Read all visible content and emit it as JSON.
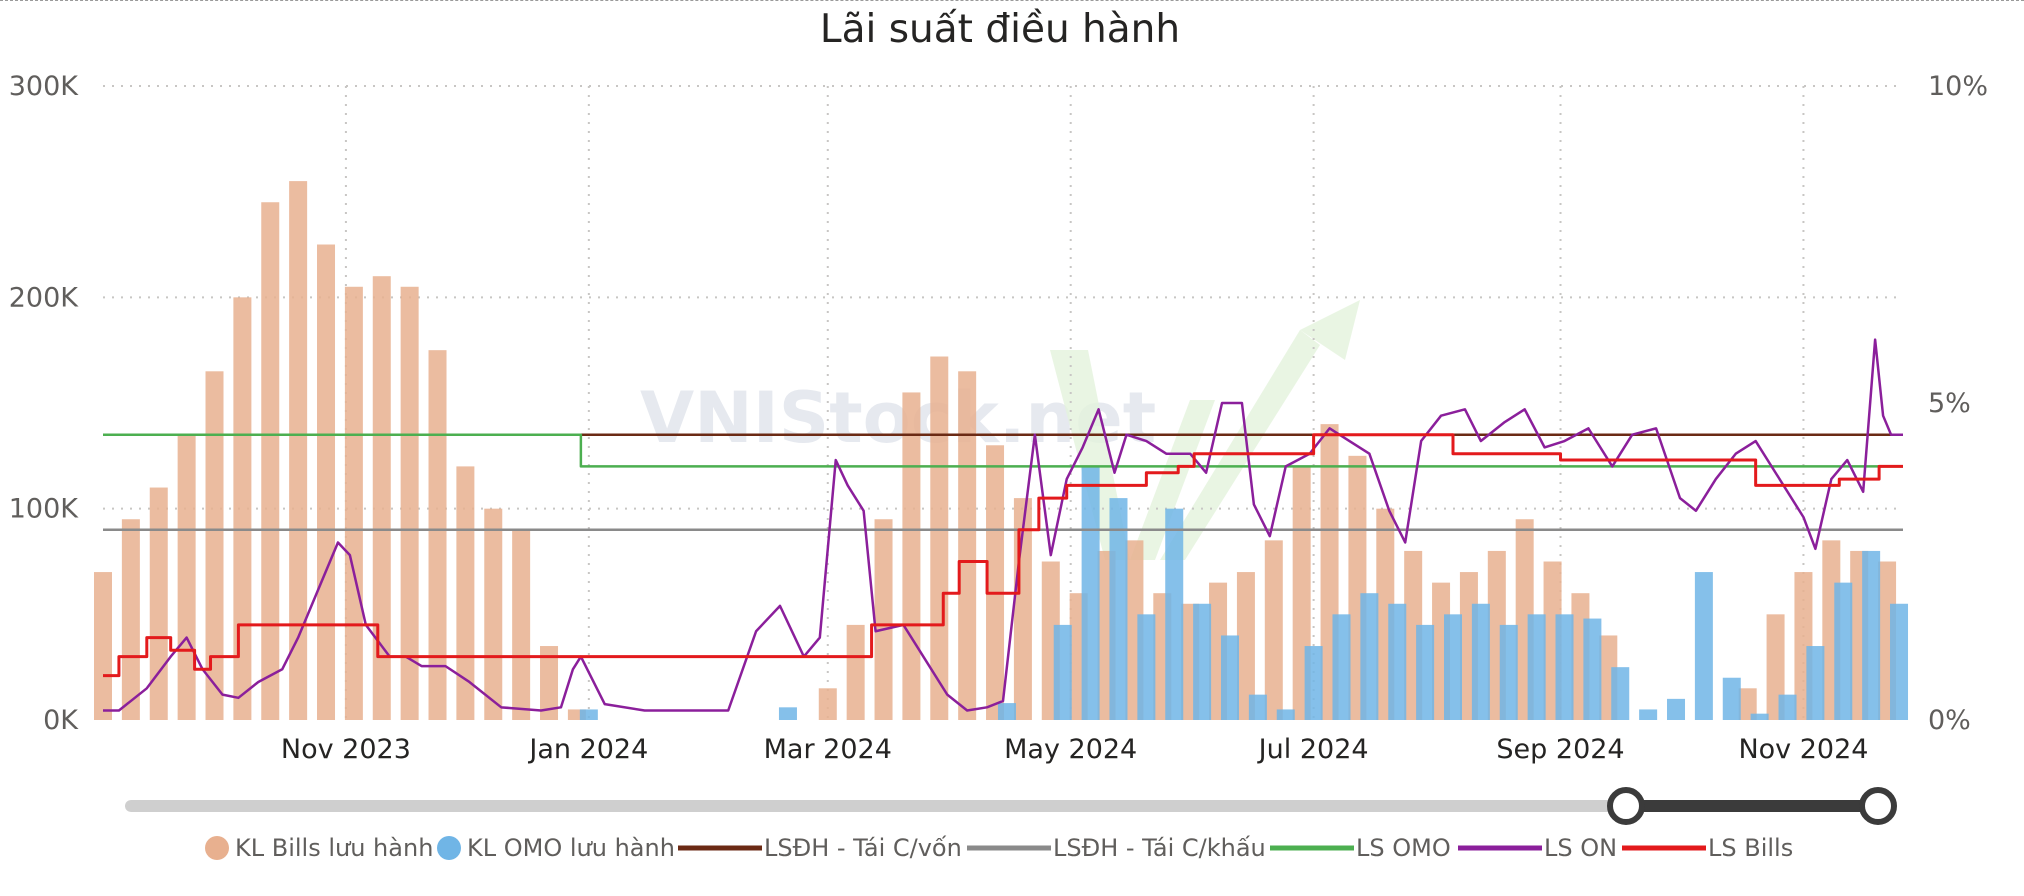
{
  "colors": {
    "bills_bar": "#e8b08f",
    "omo_bar": "#70b5e6",
    "lsdh_von": "#6b2a14",
    "lsdh_khau": "#8a8a8a",
    "ls_omo": "#4caf50",
    "ls_on": "#8b1f9b",
    "ls_bills": "#e31a1c",
    "grid": "#c8c6c4",
    "slider_track": "#cfcfcf",
    "slider_active": "#3b3b3b"
  },
  "watermark": "VNIStock.net",
  "chart_data": {
    "type": "bar+line",
    "title": "Lãi suất điều hành",
    "x_range": [
      "2023-09-01",
      "2024-11-26"
    ],
    "x_ticks": [
      {
        "label": "Nov 2023",
        "date": "2023-11-01"
      },
      {
        "label": "Jan 2024",
        "date": "2024-01-01"
      },
      {
        "label": "Mar 2024",
        "date": "2024-03-01"
      },
      {
        "label": "May 2024",
        "date": "2024-05-01"
      },
      {
        "label": "Jul 2024",
        "date": "2024-07-01"
      },
      {
        "label": "Sep 2024",
        "date": "2024-09-01"
      },
      {
        "label": "Nov 2024",
        "date": "2024-11-01"
      }
    ],
    "y_left": {
      "range": [
        0,
        300000
      ],
      "ticks": [
        "0K",
        "100K",
        "200K",
        "300K"
      ]
    },
    "y_right": {
      "range": [
        0,
        10
      ],
      "ticks": [
        "0%",
        "5%",
        "10%"
      ]
    },
    "grid": true,
    "legend_position": "bottom",
    "series": [
      {
        "name": "KL Bills lưu hành",
        "type": "bar",
        "axis": "left",
        "points": [
          [
            "2023-09-01",
            70000
          ],
          [
            "2023-09-08",
            95000
          ],
          [
            "2023-09-15",
            110000
          ],
          [
            "2023-09-22",
            135000
          ],
          [
            "2023-09-29",
            165000
          ],
          [
            "2023-10-06",
            200000
          ],
          [
            "2023-10-13",
            245000
          ],
          [
            "2023-10-20",
            255000
          ],
          [
            "2023-10-27",
            225000
          ],
          [
            "2023-11-03",
            205000
          ],
          [
            "2023-11-10",
            210000
          ],
          [
            "2023-11-17",
            205000
          ],
          [
            "2023-11-24",
            175000
          ],
          [
            "2023-12-01",
            120000
          ],
          [
            "2023-12-08",
            100000
          ],
          [
            "2023-12-15",
            90000
          ],
          [
            "2023-12-22",
            35000
          ],
          [
            "2023-12-29",
            5000
          ],
          [
            "2024-03-01",
            15000
          ],
          [
            "2024-03-08",
            45000
          ],
          [
            "2024-03-15",
            95000
          ],
          [
            "2024-03-22",
            155000
          ],
          [
            "2024-03-29",
            172000
          ],
          [
            "2024-04-05",
            165000
          ],
          [
            "2024-04-12",
            130000
          ],
          [
            "2024-04-19",
            105000
          ],
          [
            "2024-04-26",
            75000
          ],
          [
            "2024-05-03",
            60000
          ],
          [
            "2024-05-10",
            80000
          ],
          [
            "2024-05-17",
            85000
          ],
          [
            "2024-05-24",
            60000
          ],
          [
            "2024-05-31",
            55000
          ],
          [
            "2024-06-07",
            65000
          ],
          [
            "2024-06-14",
            70000
          ],
          [
            "2024-06-21",
            85000
          ],
          [
            "2024-06-28",
            120000
          ],
          [
            "2024-07-05",
            140000
          ],
          [
            "2024-07-12",
            125000
          ],
          [
            "2024-07-19",
            100000
          ],
          [
            "2024-07-26",
            80000
          ],
          [
            "2024-08-02",
            65000
          ],
          [
            "2024-08-09",
            70000
          ],
          [
            "2024-08-16",
            80000
          ],
          [
            "2024-08-23",
            95000
          ],
          [
            "2024-08-30",
            75000
          ],
          [
            "2024-09-06",
            60000
          ],
          [
            "2024-09-13",
            40000
          ],
          [
            "2024-10-18",
            15000
          ],
          [
            "2024-10-25",
            50000
          ],
          [
            "2024-11-01",
            70000
          ],
          [
            "2024-11-08",
            85000
          ],
          [
            "2024-11-15",
            80000
          ],
          [
            "2024-11-22",
            75000
          ]
        ]
      },
      {
        "name": "KL OMO lưu hành",
        "type": "bar",
        "axis": "left",
        "points": [
          [
            "2024-01-01",
            5000
          ],
          [
            "2024-02-20",
            6000
          ],
          [
            "2024-04-15",
            8000
          ],
          [
            "2024-04-29",
            45000
          ],
          [
            "2024-05-06",
            120000
          ],
          [
            "2024-05-13",
            105000
          ],
          [
            "2024-05-20",
            50000
          ],
          [
            "2024-05-27",
            100000
          ],
          [
            "2024-06-03",
            55000
          ],
          [
            "2024-06-10",
            40000
          ],
          [
            "2024-06-17",
            12000
          ],
          [
            "2024-06-24",
            5000
          ],
          [
            "2024-07-01",
            35000
          ],
          [
            "2024-07-08",
            50000
          ],
          [
            "2024-07-15",
            60000
          ],
          [
            "2024-07-22",
            55000
          ],
          [
            "2024-07-29",
            45000
          ],
          [
            "2024-08-05",
            50000
          ],
          [
            "2024-08-12",
            55000
          ],
          [
            "2024-08-19",
            45000
          ],
          [
            "2024-08-26",
            50000
          ],
          [
            "2024-09-02",
            50000
          ],
          [
            "2024-09-09",
            48000
          ],
          [
            "2024-09-16",
            25000
          ],
          [
            "2024-09-23",
            5000
          ],
          [
            "2024-09-30",
            10000
          ],
          [
            "2024-10-07",
            70000
          ],
          [
            "2024-10-14",
            20000
          ],
          [
            "2024-10-21",
            3000
          ],
          [
            "2024-10-28",
            12000
          ],
          [
            "2024-11-04",
            35000
          ],
          [
            "2024-11-11",
            65000
          ],
          [
            "2024-11-18",
            80000
          ],
          [
            "2024-11-25",
            55000
          ]
        ]
      },
      {
        "name": "LSĐH - Tái C/vốn",
        "type": "line",
        "step": true,
        "axis": "right",
        "points": [
          [
            "2023-09-01",
            4.5
          ],
          [
            "2024-11-26",
            4.5
          ]
        ]
      },
      {
        "name": "LSĐH - Tái C/khấu",
        "type": "line",
        "step": true,
        "axis": "right",
        "points": [
          [
            "2023-09-01",
            3.0
          ],
          [
            "2024-11-26",
            3.0
          ]
        ]
      },
      {
        "name": "LS OMO",
        "type": "line",
        "step": true,
        "axis": "right",
        "points": [
          [
            "2023-09-01",
            4.5
          ],
          [
            "2023-12-29",
            4.5
          ],
          [
            "2023-12-30",
            4.0
          ],
          [
            "2024-09-20",
            4.0
          ],
          [
            "2024-09-21",
            4.0
          ],
          [
            "2024-11-26",
            4.0
          ]
        ]
      },
      {
        "name": "LS ON",
        "type": "line",
        "axis": "right",
        "points": [
          [
            "2023-09-01",
            0.15
          ],
          [
            "2023-09-05",
            0.15
          ],
          [
            "2023-09-12",
            0.5
          ],
          [
            "2023-09-18",
            1.0
          ],
          [
            "2023-09-22",
            1.3
          ],
          [
            "2023-09-26",
            0.8
          ],
          [
            "2023-10-01",
            0.4
          ],
          [
            "2023-10-05",
            0.35
          ],
          [
            "2023-10-10",
            0.6
          ],
          [
            "2023-10-16",
            0.8
          ],
          [
            "2023-10-20",
            1.3
          ],
          [
            "2023-10-26",
            2.2
          ],
          [
            "2023-10-30",
            2.8
          ],
          [
            "2023-11-02",
            2.6
          ],
          [
            "2023-11-06",
            1.5
          ],
          [
            "2023-11-12",
            1.0
          ],
          [
            "2023-11-16",
            1.0
          ],
          [
            "2023-11-20",
            0.85
          ],
          [
            "2023-11-26",
            0.85
          ],
          [
            "2023-12-02",
            0.6
          ],
          [
            "2023-12-10",
            0.2
          ],
          [
            "2023-12-20",
            0.15
          ],
          [
            "2023-12-25",
            0.2
          ],
          [
            "2023-12-28",
            0.8
          ],
          [
            "2023-12-30",
            1.0
          ],
          [
            "2024-01-05",
            0.25
          ],
          [
            "2024-01-15",
            0.15
          ],
          [
            "2024-01-25",
            0.15
          ],
          [
            "2024-02-05",
            0.15
          ],
          [
            "2024-02-12",
            1.4
          ],
          [
            "2024-02-18",
            1.8
          ],
          [
            "2024-02-24",
            1.0
          ],
          [
            "2024-02-28",
            1.3
          ],
          [
            "2024-03-03",
            4.1
          ],
          [
            "2024-03-06",
            3.7
          ],
          [
            "2024-03-10",
            3.3
          ],
          [
            "2024-03-13",
            1.4
          ],
          [
            "2024-03-20",
            1.5
          ],
          [
            "2024-03-26",
            0.9
          ],
          [
            "2024-03-31",
            0.4
          ],
          [
            "2024-04-05",
            0.15
          ],
          [
            "2024-04-10",
            0.2
          ],
          [
            "2024-04-14",
            0.3
          ],
          [
            "2024-04-18",
            2.5
          ],
          [
            "2024-04-22",
            4.5
          ],
          [
            "2024-04-26",
            2.6
          ],
          [
            "2024-04-30",
            3.8
          ],
          [
            "2024-05-04",
            4.3
          ],
          [
            "2024-05-08",
            4.9
          ],
          [
            "2024-05-12",
            3.9
          ],
          [
            "2024-05-15",
            4.5
          ],
          [
            "2024-05-20",
            4.4
          ],
          [
            "2024-05-25",
            4.2
          ],
          [
            "2024-05-31",
            4.2
          ],
          [
            "2024-06-04",
            3.9
          ],
          [
            "2024-06-08",
            5.0
          ],
          [
            "2024-06-13",
            5.0
          ],
          [
            "2024-06-16",
            3.4
          ],
          [
            "2024-06-20",
            2.9
          ],
          [
            "2024-06-24",
            4.0
          ],
          [
            "2024-06-30",
            4.2
          ],
          [
            "2024-07-05",
            4.6
          ],
          [
            "2024-07-10",
            4.4
          ],
          [
            "2024-07-15",
            4.2
          ],
          [
            "2024-07-20",
            3.3
          ],
          [
            "2024-07-24",
            2.8
          ],
          [
            "2024-07-28",
            4.4
          ],
          [
            "2024-08-02",
            4.8
          ],
          [
            "2024-08-08",
            4.9
          ],
          [
            "2024-08-12",
            4.4
          ],
          [
            "2024-08-18",
            4.7
          ],
          [
            "2024-08-23",
            4.9
          ],
          [
            "2024-08-28",
            4.3
          ],
          [
            "2024-09-02",
            4.4
          ],
          [
            "2024-09-08",
            4.6
          ],
          [
            "2024-09-14",
            4.0
          ],
          [
            "2024-09-19",
            4.5
          ],
          [
            "2024-09-25",
            4.6
          ],
          [
            "2024-10-01",
            3.5
          ],
          [
            "2024-10-05",
            3.3
          ],
          [
            "2024-10-10",
            3.8
          ],
          [
            "2024-10-15",
            4.2
          ],
          [
            "2024-10-20",
            4.4
          ],
          [
            "2024-10-25",
            3.9
          ],
          [
            "2024-11-01",
            3.2
          ],
          [
            "2024-11-04",
            2.7
          ],
          [
            "2024-11-08",
            3.8
          ],
          [
            "2024-11-12",
            4.1
          ],
          [
            "2024-11-16",
            3.6
          ],
          [
            "2024-11-19",
            6.0
          ],
          [
            "2024-11-21",
            4.8
          ],
          [
            "2024-11-23",
            4.5
          ],
          [
            "2024-11-26",
            4.5
          ]
        ]
      },
      {
        "name": "LS Bills",
        "type": "line",
        "step": true,
        "axis": "right",
        "points": [
          [
            "2023-09-01",
            0.7
          ],
          [
            "2023-09-05",
            1.0
          ],
          [
            "2023-09-12",
            1.3
          ],
          [
            "2023-09-18",
            1.1
          ],
          [
            "2023-09-24",
            0.8
          ],
          [
            "2023-09-28",
            1.0
          ],
          [
            "2023-10-05",
            1.5
          ],
          [
            "2023-10-20",
            1.5
          ],
          [
            "2023-11-09",
            1.0
          ],
          [
            "2024-03-12",
            1.5
          ],
          [
            "2024-03-30",
            2.0
          ],
          [
            "2024-04-03",
            2.5
          ],
          [
            "2024-04-10",
            2.0
          ],
          [
            "2024-04-18",
            3.0
          ],
          [
            "2024-04-23",
            3.5
          ],
          [
            "2024-04-30",
            3.7
          ],
          [
            "2024-05-20",
            3.9
          ],
          [
            "2024-05-28",
            4.0
          ],
          [
            "2024-06-01",
            4.2
          ],
          [
            "2024-06-22",
            4.2
          ],
          [
            "2024-07-01",
            4.5
          ],
          [
            "2024-08-05",
            4.2
          ],
          [
            "2024-09-01",
            4.1
          ],
          [
            "2024-10-20",
            3.7
          ],
          [
            "2024-11-10",
            3.8
          ],
          [
            "2024-11-20",
            4.0
          ],
          [
            "2024-11-26",
            4.0
          ]
        ]
      }
    ]
  }
}
